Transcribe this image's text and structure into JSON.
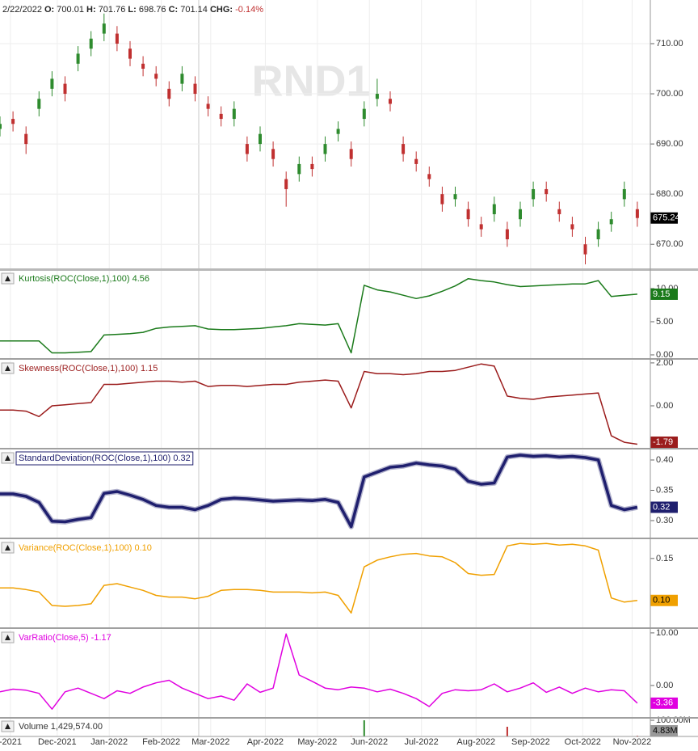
{
  "header": {
    "date": "2/22/2022",
    "fields": [
      {
        "label": "O:",
        "value": "700.01"
      },
      {
        "label": "H:",
        "value": "701.76"
      },
      {
        "label": "L:",
        "value": "698.76"
      },
      {
        "label": "C:",
        "value": "701.14"
      }
    ],
    "chg": {
      "label": "CHG:",
      "value": "-0.14%"
    }
  },
  "watermark": "RND1",
  "x_axis": {
    "x": [
      0,
      5,
      10,
      15,
      20,
      25,
      30,
      35,
      40,
      45,
      50,
      55,
      60,
      65,
      70,
      75,
      80,
      85,
      90,
      95,
      100,
      105,
      110,
      115,
      120,
      125,
      130,
      135,
      140,
      145,
      150,
      155,
      160,
      165,
      170,
      175,
      180,
      185,
      190,
      195,
      200,
      205,
      210,
      215,
      220,
      225,
      230,
      235,
      240,
      245
    ],
    "xlim": [
      0,
      250
    ],
    "xticks": [
      {
        "value": 4,
        "label": "-2021"
      },
      {
        "value": 22,
        "label": "Dec-2021"
      },
      {
        "value": 42,
        "label": "Jan-2022"
      },
      {
        "value": 62,
        "label": "Feb-2022"
      },
      {
        "value": 81,
        "label": "Mar-2022"
      },
      {
        "value": 102,
        "label": "Apr-2022"
      },
      {
        "value": 122,
        "label": "May-2022"
      },
      {
        "value": 142,
        "label": "Jun-2022"
      },
      {
        "value": 162,
        "label": "Jul-2022"
      },
      {
        "value": 183,
        "label": "Aug-2022"
      },
      {
        "value": 204,
        "label": "Sep-2022"
      },
      {
        "value": 224,
        "label": "Oct-2022"
      },
      {
        "value": 243,
        "label": "Nov-2022"
      }
    ]
  },
  "chart_data": [
    {
      "type": "candlestick",
      "up_color": "#2e8b2e",
      "down_color": "#c03030",
      "grid": true,
      "open": [
        693,
        695,
        692,
        697,
        701,
        702,
        706,
        709,
        712,
        712,
        709,
        706,
        704,
        701,
        702,
        702,
        698,
        696,
        695,
        690,
        690,
        689,
        683,
        684,
        686,
        688,
        692,
        689,
        695,
        699,
        699,
        690,
        687,
        684,
        680,
        679,
        677,
        674,
        676,
        673,
        675,
        679,
        681,
        677,
        674,
        670,
        671,
        674,
        679,
        677
      ],
      "high": [
        695.5,
        696.5,
        693.5,
        700.5,
        704.5,
        703.5,
        709.5,
        712.5,
        716,
        713.5,
        710.5,
        707.5,
        705.5,
        702.5,
        705.5,
        703.5,
        699.5,
        697.5,
        698.5,
        691.5,
        693.5,
        690.5,
        684.5,
        687.5,
        687.5,
        691.5,
        694.5,
        690.5,
        698.5,
        703,
        700.5,
        691.5,
        688.5,
        685.5,
        681.5,
        681.5,
        678.5,
        675.5,
        679.5,
        674.5,
        678.5,
        682.5,
        682.5,
        678.5,
        675.5,
        671.5,
        674.5,
        676.5,
        682.5,
        678.5
      ],
      "low": [
        691.5,
        692.5,
        688,
        695.5,
        699.5,
        698.5,
        704.5,
        707.5,
        710.5,
        708.5,
        705.5,
        703.5,
        701.5,
        697.5,
        700.5,
        698.5,
        695.5,
        693.5,
        693.5,
        686.5,
        688.5,
        685.5,
        677.5,
        682.5,
        683.5,
        686.5,
        690.5,
        685.5,
        693.5,
        697.5,
        696.5,
        686.5,
        684.5,
        681.5,
        676.5,
        677.5,
        673.5,
        671.5,
        674.5,
        669.5,
        673.5,
        677.5,
        678.5,
        674.5,
        671.5,
        666,
        669.5,
        672.5,
        677.5,
        673.5
      ],
      "close": [
        694,
        694,
        690,
        699,
        703,
        700,
        708,
        711,
        714,
        710,
        707,
        705,
        703,
        699,
        704,
        700,
        697,
        695,
        697,
        688,
        692,
        687,
        681,
        686,
        685,
        690,
        693,
        687,
        697,
        700,
        698,
        688,
        686,
        683,
        678,
        680,
        675,
        673,
        678,
        671,
        677,
        681,
        680,
        676,
        673,
        668,
        673,
        675,
        681,
        675.24
      ],
      "ylim": [
        665.2,
        718.7
      ],
      "yticks": [
        {
          "value": 710,
          "label": "710.00"
        },
        {
          "value": 700,
          "label": "700.00"
        },
        {
          "value": 690,
          "label": "690.00"
        },
        {
          "value": 680,
          "label": "680.00"
        },
        {
          "value": 670,
          "label": "670.00"
        }
      ],
      "last_label": "675.24",
      "label_color": "#000000"
    },
    {
      "type": "line",
      "name": "Kurtosis(ROC(Close,1),100) 4.56",
      "color": "#1a7a1a",
      "line_width": 1.5,
      "values": [
        2.1,
        2.1,
        2.1,
        2.1,
        0.3,
        0.3,
        0.4,
        0.5,
        3.0,
        3.1,
        3.2,
        3.4,
        4.0,
        4.2,
        4.3,
        4.4,
        3.9,
        3.8,
        3.8,
        3.9,
        4.0,
        4.2,
        4.4,
        4.7,
        4.6,
        4.5,
        4.7,
        0.3,
        10.5,
        9.8,
        9.5,
        9.0,
        8.5,
        8.9,
        9.6,
        10.4,
        11.5,
        11.2,
        11.0,
        10.6,
        10.3,
        10.4,
        10.5,
        10.6,
        10.7,
        10.7,
        11.2,
        8.8,
        9.0,
        9.15
      ],
      "ylim": [
        -0.49,
        12.68
      ],
      "yticks": [
        {
          "value": 10,
          "label": "10.00"
        },
        {
          "value": 5,
          "label": "5.00"
        },
        {
          "value": 0,
          "label": "0.00"
        }
      ],
      "last_label": "9.15"
    },
    {
      "type": "line",
      "name": "Skewness(ROC(Close,1),100) 1.15",
      "color": "#9b1c1c",
      "line_width": 1.5,
      "values": [
        -0.2,
        -0.2,
        -0.25,
        -0.5,
        0.0,
        0.05,
        0.1,
        0.15,
        1.0,
        1.0,
        1.05,
        1.1,
        1.15,
        1.15,
        1.1,
        1.15,
        0.9,
        0.95,
        0.95,
        0.9,
        0.95,
        1.0,
        1.0,
        1.1,
        1.15,
        1.2,
        1.15,
        -0.1,
        1.6,
        1.5,
        1.5,
        1.45,
        1.5,
        1.6,
        1.6,
        1.65,
        1.8,
        1.95,
        1.85,
        0.45,
        0.35,
        0.3,
        0.4,
        0.45,
        0.5,
        0.55,
        0.6,
        -1.4,
        -1.7,
        -1.79
      ],
      "ylim": [
        -1.96,
        2.11
      ],
      "yticks": [
        {
          "value": 2,
          "label": "2.00"
        },
        {
          "value": 0,
          "label": "0.00"
        }
      ],
      "last_label": "-1.79"
    },
    {
      "type": "line",
      "name": "StandardDeviation(ROC(Close,1),100) 0.32",
      "color": "#1f1f6e",
      "line_width": 3.5,
      "label_boxed": true,
      "values": [
        0.344,
        0.344,
        0.34,
        0.33,
        0.299,
        0.298,
        0.302,
        0.305,
        0.345,
        0.348,
        0.342,
        0.335,
        0.325,
        0.322,
        0.322,
        0.318,
        0.325,
        0.335,
        0.337,
        0.336,
        0.334,
        0.332,
        0.333,
        0.334,
        0.333,
        0.335,
        0.33,
        0.29,
        0.372,
        0.38,
        0.388,
        0.39,
        0.395,
        0.392,
        0.39,
        0.385,
        0.365,
        0.36,
        0.362,
        0.405,
        0.408,
        0.406,
        0.407,
        0.405,
        0.406,
        0.404,
        0.4,
        0.325,
        0.318,
        0.322
      ],
      "ylim": [
        0.272,
        0.416
      ],
      "yticks": [
        {
          "value": 0.4,
          "label": "0.40"
        },
        0.35,
        {
          "value": 0.3,
          "label": "0.30"
        }
      ],
      "last_label": "0.32"
    },
    {
      "type": "line",
      "name": "Variance(ROC(Close,1),100) 0.10",
      "color": "#f0a000",
      "line_width": 1.5,
      "values": [
        0.115,
        0.115,
        0.113,
        0.11,
        0.094,
        0.093,
        0.094,
        0.096,
        0.118,
        0.12,
        0.116,
        0.112,
        0.106,
        0.104,
        0.104,
        0.102,
        0.105,
        0.112,
        0.113,
        0.113,
        0.112,
        0.11,
        0.11,
        0.11,
        0.109,
        0.11,
        0.106,
        0.085,
        0.14,
        0.148,
        0.152,
        0.155,
        0.156,
        0.153,
        0.152,
        0.145,
        0.132,
        0.13,
        0.131,
        0.165,
        0.168,
        0.167,
        0.168,
        0.166,
        0.167,
        0.165,
        0.16,
        0.103,
        0.098,
        0.1
      ],
      "ylim": [
        0.068,
        0.172
      ],
      "yticks": [
        0.15
      ],
      "last_label": "0.10",
      "label_color": "#000000"
    },
    {
      "type": "line",
      "name": "VarRatio(Close,5) -1.17",
      "color": "#e000e0",
      "line_width": 1.5,
      "values": [
        -1.2,
        -0.7,
        -0.9,
        -1.5,
        -4.5,
        -1.2,
        -0.5,
        -1.5,
        -2.5,
        -1,
        -1.5,
        -0.3,
        0.5,
        1,
        -0.5,
        -1.5,
        -2.5,
        -2,
        -2.8,
        0.3,
        -1.3,
        -0.5,
        9.8,
        2,
        0.8,
        -0.5,
        -0.8,
        -0.3,
        -0.5,
        -1.2,
        -0.7,
        -1.5,
        -2.5,
        -4,
        -1.5,
        -0.8,
        -1.0,
        -0.8,
        0.3,
        -1.2,
        -0.5,
        0.5,
        -1.3,
        -0.3,
        -1.5,
        -0.5,
        -1.2,
        -0.8,
        -1.0,
        -3.36
      ],
      "ylim": [
        -6,
        10.6
      ],
      "yticks": [
        {
          "value": 10,
          "label": "10.00"
        },
        {
          "value": 0,
          "label": "0.00"
        }
      ],
      "last_label": "-3.36"
    },
    {
      "type": "bar",
      "name": "Volume 1,429,574.00",
      "color": "#999999",
      "values": [
        2100000,
        1900000,
        2300000,
        1800000,
        2500000,
        2000000,
        1700000,
        2200000,
        2600000,
        1900000,
        2100000,
        1800000,
        2400000,
        2000000,
        1600000,
        2200000,
        1900000,
        2300000,
        2000000,
        1800000,
        2100000,
        2500000,
        2700000,
        2000000,
        1900000,
        2200000,
        2400000,
        3500000,
        100000000,
        2600000,
        2100000,
        1900000,
        2000000,
        2300000,
        1800000,
        2200000,
        2000000,
        2100000,
        2500000,
        60000000,
        2300000,
        1900000,
        2000000,
        2200000,
        1800000,
        2600000,
        2100000,
        2400000,
        2000000,
        4830000
      ],
      "ylim": [
        0,
        110000000
      ],
      "yticks": [
        {
          "value": 100000000,
          "label": "100.00M"
        }
      ],
      "last_label": "4.83M",
      "label_color": "#000000"
    }
  ]
}
